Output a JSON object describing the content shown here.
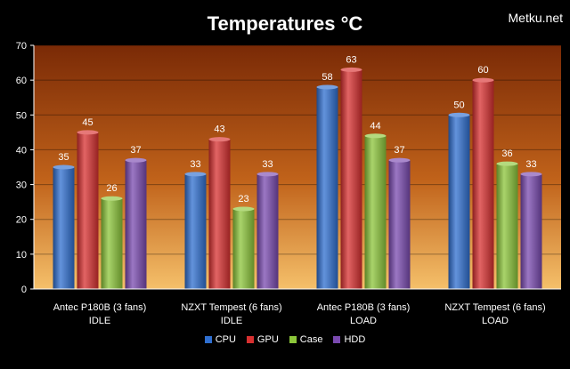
{
  "title": "Temperatures  °C",
  "watermark": "Metku.net",
  "chart_data": {
    "type": "bar",
    "title": "Temperatures  °C",
    "categories": [
      [
        "Antec P180B (3 fans)",
        "IDLE"
      ],
      [
        "NZXT Tempest (6 fans)",
        "IDLE"
      ],
      [
        "Antec P180B (3 fans)",
        "LOAD"
      ],
      [
        "NZXT Tempest (6 fans)",
        "LOAD"
      ]
    ],
    "series": [
      {
        "name": "CPU",
        "color": "#2f6fd0",
        "values": [
          35,
          33,
          58,
          50
        ]
      },
      {
        "name": "GPU",
        "color": "#d83030",
        "values": [
          45,
          43,
          63,
          60
        ]
      },
      {
        "name": "Case",
        "color": "#8cc63a",
        "values": [
          26,
          23,
          44,
          36
        ]
      },
      {
        "name": "HDD",
        "color": "#7a4ab0",
        "values": [
          37,
          33,
          37,
          33
        ]
      }
    ],
    "ylim": [
      0,
      70
    ],
    "yticks": [
      0,
      10,
      20,
      30,
      40,
      50,
      60,
      70
    ],
    "grid": true,
    "legend": "bottom"
  }
}
